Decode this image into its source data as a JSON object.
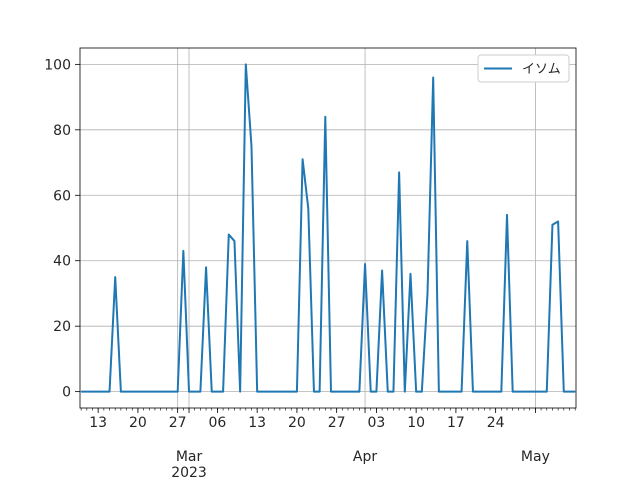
{
  "chart_data": {
    "type": "line",
    "title": "",
    "xlabel": "",
    "ylabel": "",
    "x": [
      "2023-02-10",
      "2023-02-11",
      "2023-02-12",
      "2023-02-13",
      "2023-02-14",
      "2023-02-15",
      "2023-02-16",
      "2023-02-17",
      "2023-02-18",
      "2023-02-19",
      "2023-02-20",
      "2023-02-21",
      "2023-02-22",
      "2023-02-23",
      "2023-02-24",
      "2023-02-25",
      "2023-02-26",
      "2023-02-27",
      "2023-02-28",
      "2023-03-01",
      "2023-03-02",
      "2023-03-03",
      "2023-03-04",
      "2023-03-05",
      "2023-03-06",
      "2023-03-07",
      "2023-03-08",
      "2023-03-09",
      "2023-03-10",
      "2023-03-11",
      "2023-03-12",
      "2023-03-13",
      "2023-03-14",
      "2023-03-15",
      "2023-03-16",
      "2023-03-17",
      "2023-03-18",
      "2023-03-19",
      "2023-03-20",
      "2023-03-21",
      "2023-03-22",
      "2023-03-23",
      "2023-03-24",
      "2023-03-25",
      "2023-03-26",
      "2023-03-27",
      "2023-03-28",
      "2023-03-29",
      "2023-03-30",
      "2023-03-31",
      "2023-04-01",
      "2023-04-02",
      "2023-04-03",
      "2023-04-04",
      "2023-04-05",
      "2023-04-06",
      "2023-04-07",
      "2023-04-08",
      "2023-04-09",
      "2023-04-10",
      "2023-04-11",
      "2023-04-12",
      "2023-04-13",
      "2023-04-14",
      "2023-04-15",
      "2023-04-16",
      "2023-04-17",
      "2023-04-18",
      "2023-04-19",
      "2023-04-20",
      "2023-04-21",
      "2023-04-22",
      "2023-04-23",
      "2023-04-24",
      "2023-04-25",
      "2023-04-26",
      "2023-04-27",
      "2023-04-28",
      "2023-04-29",
      "2023-04-30",
      "2023-05-01",
      "2023-05-02",
      "2023-05-03",
      "2023-05-04",
      "2023-05-05",
      "2023-05-06",
      "2023-05-07",
      "2023-05-08"
    ],
    "series": [
      {
        "name": "イソム",
        "color": "#1f77b4",
        "values": [
          0,
          0,
          0,
          0,
          0,
          0,
          35,
          0,
          0,
          0,
          0,
          0,
          0,
          0,
          0,
          0,
          0,
          0,
          43,
          0,
          0,
          0,
          38,
          0,
          0,
          0,
          48,
          46,
          0,
          100,
          75,
          0,
          0,
          0,
          0,
          0,
          0,
          0,
          0,
          71,
          56,
          0,
          0,
          84,
          0,
          0,
          0,
          0,
          0,
          0,
          39,
          0,
          0,
          37,
          0,
          0,
          67,
          0,
          36,
          0,
          0,
          30,
          96,
          0,
          0,
          0,
          0,
          0,
          46,
          0,
          0,
          0,
          0,
          0,
          0,
          54,
          0,
          0,
          0,
          0,
          0,
          0,
          0,
          51,
          52,
          0,
          0,
          0
        ]
      }
    ],
    "ylim": [
      -5,
      105
    ],
    "y_ticks": [
      0,
      20,
      40,
      60,
      80,
      100
    ],
    "x_ticks": [
      {
        "date": "2023-02-13",
        "label": "13"
      },
      {
        "date": "2023-02-20",
        "label": "20"
      },
      {
        "date": "2023-02-27",
        "label": "27"
      },
      {
        "date": "2023-03-01",
        "label": "Mar\n2023"
      },
      {
        "date": "2023-03-06",
        "label": "06"
      },
      {
        "date": "2023-03-13",
        "label": "13"
      },
      {
        "date": "2023-03-20",
        "label": "20"
      },
      {
        "date": "2023-03-27",
        "label": "27"
      },
      {
        "date": "2023-04-01",
        "label": "Apr"
      },
      {
        "date": "2023-04-03",
        "label": "03"
      },
      {
        "date": "2023-04-10",
        "label": "10"
      },
      {
        "date": "2023-04-17",
        "label": "17"
      },
      {
        "date": "2023-04-24",
        "label": "24"
      },
      {
        "date": "2023-05-01",
        "label": "May"
      }
    ],
    "grid_dates": [
      "2023-02-27",
      "2023-03-01",
      "2023-04-01",
      "2023-05-01"
    ],
    "grid": true,
    "legend_position": "upper right"
  }
}
